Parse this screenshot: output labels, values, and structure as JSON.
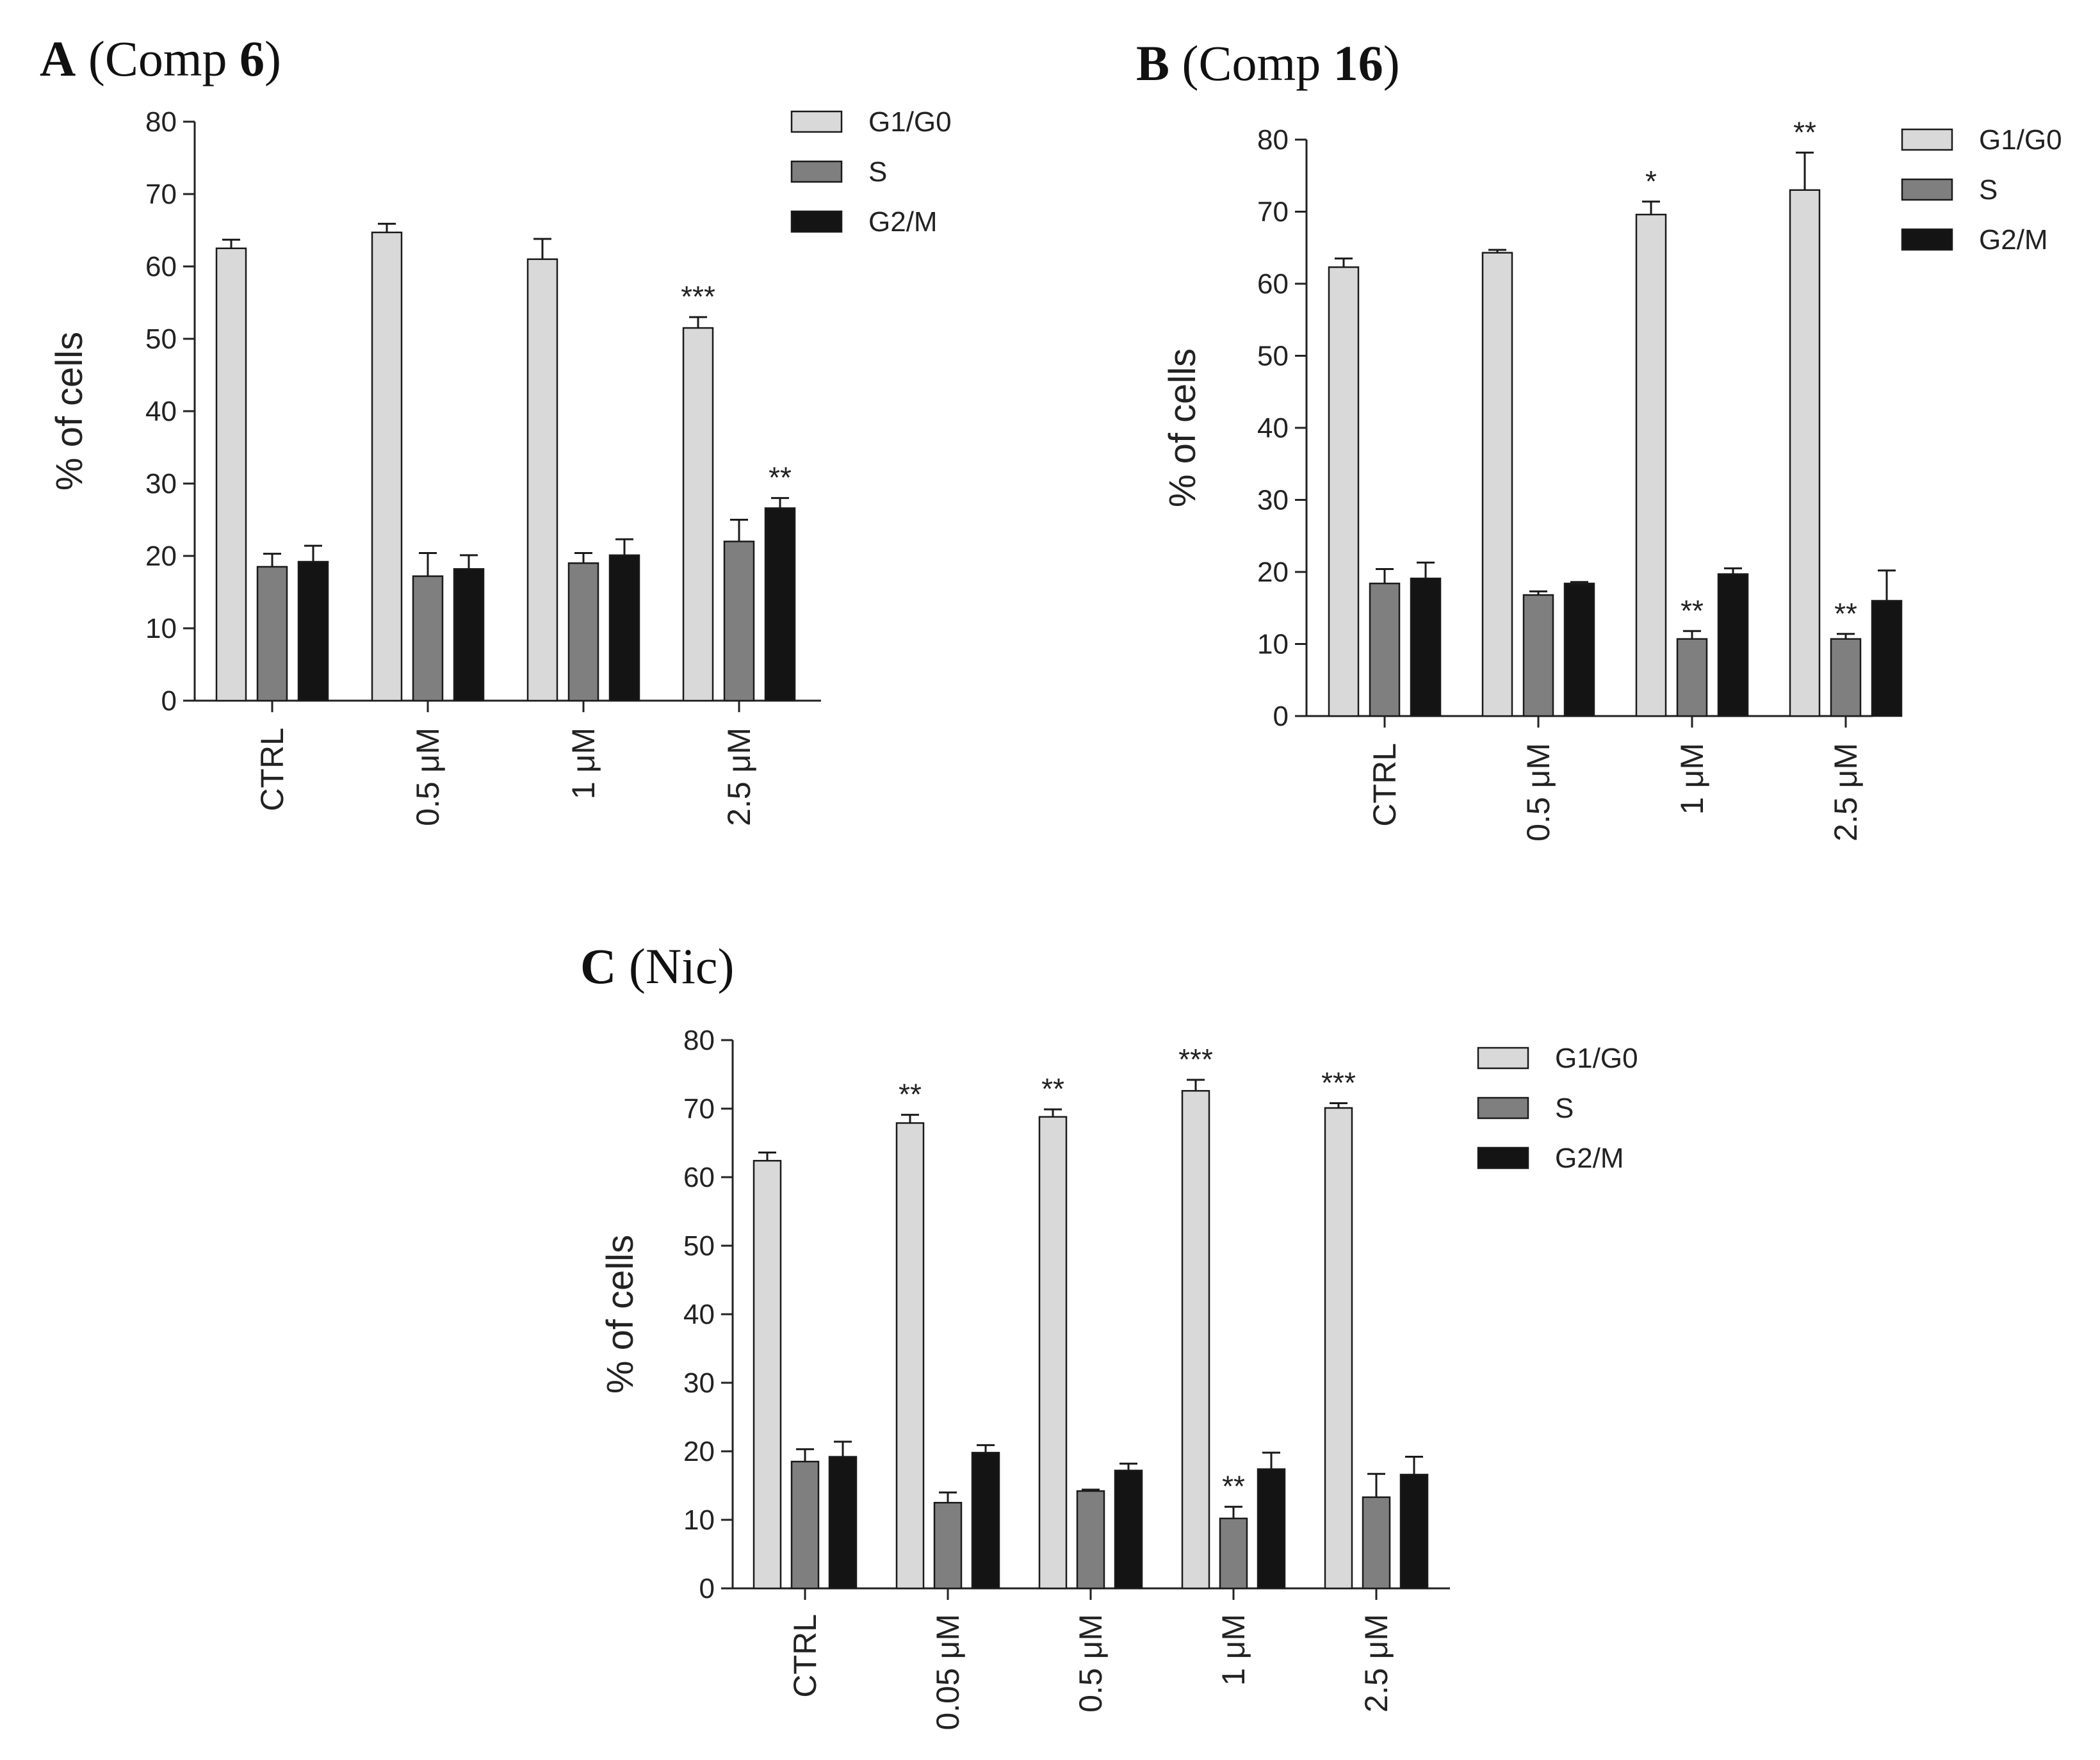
{
  "series_colors": {
    "G1/G0": "#d9d9d9",
    "S": "#7f7f7f",
    "G2/M": "#141414"
  },
  "chart_data": [
    {
      "type": "bar",
      "panel": "A",
      "title_letter": "A",
      "title_parts": [
        "(Comp ",
        "6",
        ")"
      ],
      "title": "A (Comp 6)",
      "ylabel": "% of cells",
      "xlabel": "",
      "ylim": [
        0,
        80
      ],
      "yticks": [
        "0",
        "10",
        "20",
        "30",
        "40",
        "50",
        "60",
        "70",
        "80"
      ],
      "categories": [
        "CTRL",
        "0.5 μM",
        "1 μM",
        "2.5 μM"
      ],
      "legend": [
        "G1/G0",
        "S",
        "G2/M"
      ],
      "legend_position": "top-right",
      "series": [
        {
          "name": "G1/G0",
          "values": [
            62.5,
            64.7,
            61.0,
            51.5
          ],
          "errors": [
            1.2,
            1.2,
            2.8,
            1.5
          ],
          "annotations": [
            "",
            "",
            "",
            "***"
          ]
        },
        {
          "name": "S",
          "values": [
            18.5,
            17.2,
            19.0,
            22.0
          ],
          "errors": [
            1.8,
            3.2,
            1.4,
            3.0
          ],
          "annotations": [
            "",
            "",
            "",
            ""
          ]
        },
        {
          "name": "G2/M",
          "values": [
            19.2,
            18.2,
            20.1,
            26.6
          ],
          "errors": [
            2.2,
            1.9,
            2.2,
            1.4
          ],
          "annotations": [
            "",
            "",
            "",
            "**"
          ]
        }
      ]
    },
    {
      "type": "bar",
      "panel": "B",
      "title_letter": "B",
      "title_parts": [
        "(Comp ",
        "16",
        ")"
      ],
      "title": "B (Comp 16)",
      "ylabel": "% of cells",
      "xlabel": "",
      "ylim": [
        0,
        80
      ],
      "yticks": [
        "0",
        "10",
        "20",
        "30",
        "40",
        "50",
        "60",
        "70",
        "80"
      ],
      "categories": [
        "CTRL",
        "0.5 μM",
        "1 μM",
        "2.5 μM"
      ],
      "legend": [
        "G1/G0",
        "S",
        "G2/M"
      ],
      "legend_position": "top-right",
      "series": [
        {
          "name": "G1/G0",
          "values": [
            62.3,
            64.3,
            69.6,
            73.0
          ],
          "errors": [
            1.2,
            0.4,
            1.8,
            5.2
          ],
          "annotations": [
            "",
            "",
            "*",
            "**"
          ]
        },
        {
          "name": "S",
          "values": [
            18.4,
            16.8,
            10.7,
            10.7
          ],
          "errors": [
            2.0,
            0.5,
            1.1,
            0.7
          ],
          "annotations": [
            "",
            "",
            "**",
            "**"
          ]
        },
        {
          "name": "G2/M",
          "values": [
            19.1,
            18.4,
            19.7,
            16.0
          ],
          "errors": [
            2.2,
            0.2,
            0.8,
            4.2
          ],
          "annotations": [
            "",
            "",
            "",
            ""
          ]
        }
      ]
    },
    {
      "type": "bar",
      "panel": "C",
      "title_letter": "C",
      "title_parts": [
        "(Nic)"
      ],
      "title": "C (Nic)",
      "ylabel": "% of cells",
      "xlabel": "",
      "ylim": [
        0,
        80
      ],
      "yticks": [
        "0",
        "10",
        "20",
        "30",
        "40",
        "50",
        "60",
        "70",
        "80"
      ],
      "categories": [
        "CTRL",
        "0.05 μM",
        "0.5 μM",
        "1 μM",
        "2.5 μM"
      ],
      "legend": [
        "G1/G0",
        "S",
        "G2/M"
      ],
      "legend_position": "top-right",
      "series": [
        {
          "name": "G1/G0",
          "values": [
            62.4,
            67.9,
            68.8,
            72.6,
            70.1
          ],
          "errors": [
            1.2,
            1.2,
            1.1,
            1.6,
            0.7
          ],
          "annotations": [
            "",
            "**",
            "**",
            "***",
            "***"
          ]
        },
        {
          "name": "S",
          "values": [
            18.5,
            12.5,
            14.2,
            10.2,
            13.3
          ],
          "errors": [
            1.8,
            1.5,
            0.2,
            1.7,
            3.4
          ],
          "annotations": [
            "",
            "",
            "",
            "**",
            ""
          ]
        },
        {
          "name": "G2/M",
          "values": [
            19.2,
            19.8,
            17.2,
            17.4,
            16.6
          ],
          "errors": [
            2.2,
            1.1,
            1.0,
            2.4,
            2.6
          ],
          "annotations": [
            "",
            "",
            "",
            "",
            ""
          ]
        }
      ]
    }
  ]
}
